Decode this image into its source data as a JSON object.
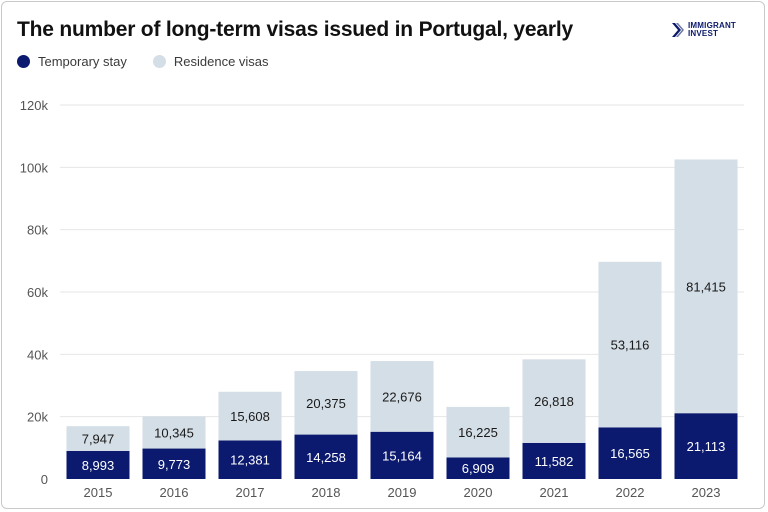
{
  "title": "The number of long-term visas issued in Portugal, yearly",
  "brand": {
    "line1": "IMMIGRANT",
    "line2": "INVEST",
    "icon": "chevron-logo-icon"
  },
  "colors": {
    "temporary": "#0b1a6e",
    "residence": "#d4dee6",
    "grid": "#e6e6e6"
  },
  "chart_data": {
    "type": "bar",
    "stacked": true,
    "categories": [
      "2015",
      "2016",
      "2017",
      "2018",
      "2019",
      "2020",
      "2021",
      "2022",
      "2023"
    ],
    "series": [
      {
        "name": "Temporary stay",
        "values": [
          8993,
          9773,
          12381,
          14258,
          15164,
          6909,
          11582,
          16565,
          21113
        ],
        "labels": [
          "8,993",
          "9,773",
          "12,381",
          "14,258",
          "15,164",
          "6,909",
          "11,582",
          "16,565",
          "21,113"
        ]
      },
      {
        "name": "Residence visas",
        "values": [
          7947,
          10345,
          15608,
          20375,
          22676,
          16225,
          26818,
          53116,
          81415
        ],
        "labels": [
          "7,947",
          "10,345",
          "15,608",
          "20,375",
          "22,676",
          "16,225",
          "26,818",
          "53,116",
          "81,415"
        ]
      }
    ],
    "ylim": [
      0,
      120000
    ],
    "yticks": [
      0,
      20000,
      40000,
      60000,
      80000,
      100000,
      120000
    ],
    "ytick_labels": [
      "0",
      "20k",
      "40k",
      "60k",
      "80k",
      "100k",
      "120k"
    ],
    "grid": true,
    "legend": "top-left"
  }
}
